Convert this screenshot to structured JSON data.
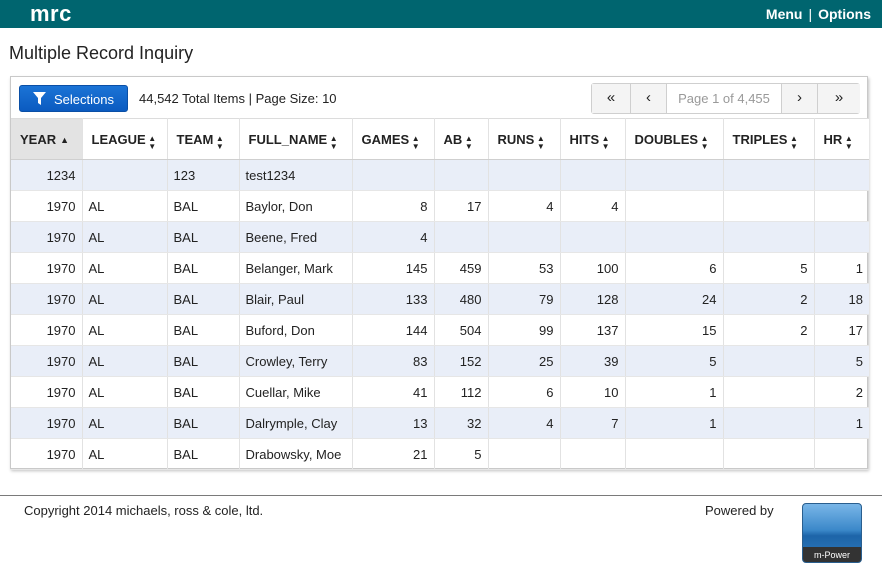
{
  "app": {
    "logo": "mrc",
    "nav": {
      "menu": "Menu",
      "separator": "|",
      "options": "Options"
    }
  },
  "page": {
    "title": "Multiple Record Inquiry"
  },
  "toolbar": {
    "selections_label": "Selections",
    "total_info": "44,542 Total Items | Page Size: 10"
  },
  "pager": {
    "first": "«",
    "prev": "‹",
    "page_placeholder": "Page 1 of 4,455",
    "next": "›",
    "last": "»"
  },
  "table": {
    "columns": [
      "YEAR",
      "LEAGUE",
      "TEAM",
      "FULL_NAME",
      "GAMES",
      "AB",
      "RUNS",
      "HITS",
      "DOUBLES",
      "TRIPLES",
      "HR"
    ],
    "sorted_column": "YEAR",
    "rows": [
      [
        "1234",
        "",
        "123",
        "test1234",
        "",
        "",
        "",
        "",
        "",
        "",
        ""
      ],
      [
        "1970",
        "AL",
        "BAL",
        "Baylor, Don",
        "8",
        "17",
        "4",
        "4",
        "",
        "",
        ""
      ],
      [
        "1970",
        "AL",
        "BAL",
        "Beene, Fred",
        "4",
        "",
        "",
        "",
        "",
        "",
        ""
      ],
      [
        "1970",
        "AL",
        "BAL",
        "Belanger, Mark",
        "145",
        "459",
        "53",
        "100",
        "6",
        "5",
        "1"
      ],
      [
        "1970",
        "AL",
        "BAL",
        "Blair, Paul",
        "133",
        "480",
        "79",
        "128",
        "24",
        "2",
        "18"
      ],
      [
        "1970",
        "AL",
        "BAL",
        "Buford, Don",
        "144",
        "504",
        "99",
        "137",
        "15",
        "2",
        "17"
      ],
      [
        "1970",
        "AL",
        "BAL",
        "Crowley, Terry",
        "83",
        "152",
        "25",
        "39",
        "5",
        "",
        "5"
      ],
      [
        "1970",
        "AL",
        "BAL",
        "Cuellar, Mike",
        "41",
        "112",
        "6",
        "10",
        "1",
        "",
        "2"
      ],
      [
        "1970",
        "AL",
        "BAL",
        "Dalrymple, Clay",
        "13",
        "32",
        "4",
        "7",
        "1",
        "",
        "1"
      ],
      [
        "1970",
        "AL",
        "BAL",
        "Drabowsky, Moe",
        "21",
        "5",
        "",
        "",
        "",
        "",
        ""
      ]
    ]
  },
  "footer": {
    "copyright": "Copyright 2014 michaels, ross & cole, ltd.",
    "powered_by": "Powered by",
    "badge_text": "m-Power"
  },
  "colors": {
    "topbar": "#00656f",
    "button": "#0b5bc0",
    "row_alt": "#e9eef8"
  },
  "icons": {
    "selections": "filter-icon",
    "sort_asc": "sort-asc-icon",
    "sort_both": "sort-both-icon"
  }
}
